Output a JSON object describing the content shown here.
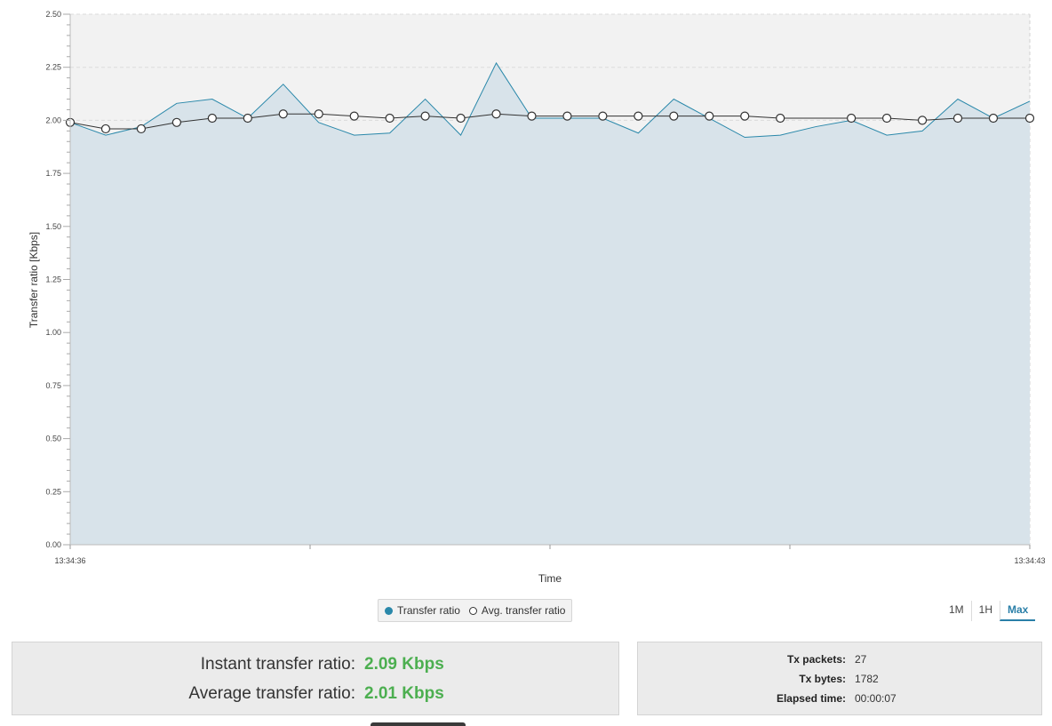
{
  "chart_data": {
    "type": "area",
    "xlabel": "Time",
    "ylabel": "Transfer ratio [Kbps]",
    "ylim": [
      0,
      2.5
    ],
    "yticks": [
      "0.00",
      "0.25",
      "0.50",
      "0.75",
      "1.00",
      "1.25",
      "1.50",
      "1.75",
      "2.00",
      "2.25",
      "2.50"
    ],
    "x_range": [
      "13:34:36",
      "13:34:43"
    ],
    "x_tick_labels": [
      "13:34:36",
      "13:34:43"
    ],
    "grid": true,
    "series": [
      {
        "name": "Transfer ratio",
        "style": "area",
        "color": "#2a88aa",
        "x": [
          0,
          0.037,
          0.074,
          0.111,
          0.148,
          0.185,
          0.222,
          0.259,
          0.296,
          0.333,
          0.37,
          0.407,
          0.444,
          0.481,
          0.518,
          0.555,
          0.592,
          0.629,
          0.666,
          0.703,
          0.74,
          0.777,
          0.814,
          0.851,
          0.888,
          0.925,
          0.962,
          1.0
        ],
        "values": [
          1.99,
          1.93,
          1.97,
          2.08,
          2.1,
          2.01,
          2.17,
          1.99,
          1.93,
          1.94,
          2.1,
          1.93,
          2.27,
          2.01,
          2.01,
          2.01,
          1.94,
          2.1,
          2.01,
          1.92,
          1.93,
          1.97,
          2.0,
          1.93,
          1.95,
          2.1,
          2.01,
          2.09
        ]
      },
      {
        "name": "Avg. transfer ratio",
        "style": "line-markers",
        "color": "#333333",
        "x": [
          0,
          0.037,
          0.074,
          0.111,
          0.148,
          0.185,
          0.222,
          0.259,
          0.296,
          0.333,
          0.37,
          0.407,
          0.444,
          0.481,
          0.518,
          0.555,
          0.592,
          0.629,
          0.666,
          0.703,
          0.74,
          0.814,
          0.851,
          0.888,
          0.925,
          0.962,
          1.0
        ],
        "values": [
          1.99,
          1.96,
          1.96,
          1.99,
          2.01,
          2.01,
          2.03,
          2.03,
          2.02,
          2.01,
          2.02,
          2.01,
          2.03,
          2.02,
          2.02,
          2.02,
          2.02,
          2.02,
          2.02,
          2.02,
          2.01,
          2.01,
          2.01,
          2.0,
          2.01,
          2.01,
          2.01
        ]
      }
    ]
  },
  "legend": {
    "items": [
      {
        "label": "Transfer ratio"
      },
      {
        "label": "Avg. transfer ratio"
      }
    ]
  },
  "range": {
    "options": [
      "1M",
      "1H",
      "Max"
    ],
    "selected": "Max"
  },
  "summary": {
    "instant_label": "Instant transfer ratio:",
    "instant_value": "2.09 Kbps",
    "average_label": "Average transfer ratio:",
    "average_value": "2.01 Kbps"
  },
  "stats": {
    "tx_packets_label": "Tx packets:",
    "tx_packets_value": "27",
    "tx_bytes_label": "Tx bytes:",
    "tx_bytes_value": "1782",
    "elapsed_label": "Elapsed time:",
    "elapsed_value": "00:00:07"
  },
  "colors": {
    "plot_background": "#f2f2f2",
    "area_fill": "#d8e3ea",
    "accent_green": "#4caf50",
    "accent_blue": "#2a7fa8"
  }
}
